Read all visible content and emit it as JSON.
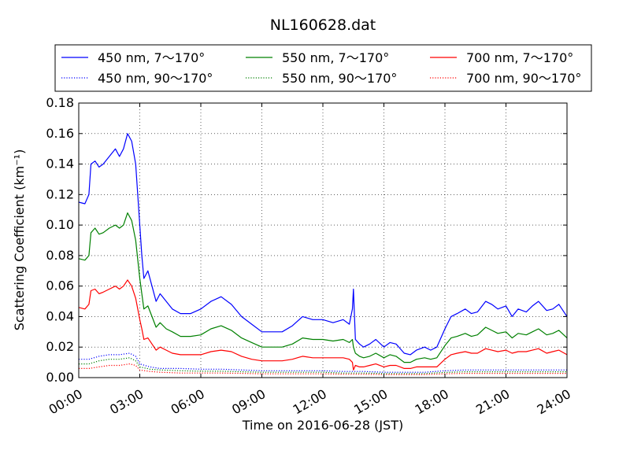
{
  "chart_data": {
    "type": "line",
    "title": "NL160628.dat",
    "xlabel": "Time on 2016-06-28 (JST)",
    "ylabel": "Scattering Coefficient (km⁻¹)",
    "x_unit": "hours",
    "xlim": [
      0,
      24
    ],
    "ylim": [
      0,
      0.18
    ],
    "x_ticks": [
      {
        "value": 0,
        "label": "00:00"
      },
      {
        "value": 3,
        "label": "03:00"
      },
      {
        "value": 6,
        "label": "06:00"
      },
      {
        "value": 9,
        "label": "09:00"
      },
      {
        "value": 12,
        "label": "12:00"
      },
      {
        "value": 15,
        "label": "15:00"
      },
      {
        "value": 18,
        "label": "18:00"
      },
      {
        "value": 21,
        "label": "21:00"
      },
      {
        "value": 24,
        "label": "24:00"
      }
    ],
    "y_ticks": [
      {
        "value": 0,
        "label": "0.00"
      },
      {
        "value": 0.02,
        "label": "0.02"
      },
      {
        "value": 0.04,
        "label": "0.04"
      },
      {
        "value": 0.06,
        "label": "0.06"
      },
      {
        "value": 0.08,
        "label": "0.08"
      },
      {
        "value": 0.1,
        "label": "0.10"
      },
      {
        "value": 0.12,
        "label": "0.12"
      },
      {
        "value": 0.14,
        "label": "0.14"
      },
      {
        "value": 0.16,
        "label": "0.16"
      },
      {
        "value": 0.18,
        "label": "0.18"
      }
    ],
    "grid": true,
    "legend_position": "top",
    "series": [
      {
        "name": "450 nm, 7～170°",
        "color": "#0000ff",
        "style": "solid",
        "x": [
          0,
          0.3,
          0.5,
          0.6,
          0.8,
          1.0,
          1.2,
          1.5,
          1.8,
          2.0,
          2.2,
          2.4,
          2.6,
          2.8,
          3.0,
          3.1,
          3.2,
          3.4,
          3.6,
          3.8,
          4.0,
          4.3,
          4.6,
          5.0,
          5.5,
          6.0,
          6.5,
          7.0,
          7.5,
          8.0,
          8.5,
          9.0,
          9.5,
          10.0,
          10.5,
          11.0,
          11.5,
          12.0,
          12.5,
          13.0,
          13.3,
          13.45,
          13.5,
          13.6,
          13.8,
          14.0,
          14.3,
          14.6,
          15.0,
          15.3,
          15.6,
          16.0,
          16.3,
          16.6,
          17.0,
          17.3,
          17.6,
          18.0,
          18.3,
          18.6,
          19.0,
          19.3,
          19.6,
          20.0,
          20.3,
          20.6,
          21.0,
          21.3,
          21.6,
          22.0,
          22.3,
          22.6,
          23.0,
          23.3,
          23.6,
          24.0
        ],
        "y": [
          0.115,
          0.114,
          0.12,
          0.14,
          0.142,
          0.138,
          0.14,
          0.145,
          0.15,
          0.145,
          0.15,
          0.16,
          0.155,
          0.14,
          0.1,
          0.08,
          0.065,
          0.07,
          0.06,
          0.05,
          0.055,
          0.05,
          0.045,
          0.042,
          0.042,
          0.045,
          0.05,
          0.053,
          0.048,
          0.04,
          0.035,
          0.03,
          0.03,
          0.03,
          0.034,
          0.04,
          0.038,
          0.038,
          0.036,
          0.038,
          0.035,
          0.045,
          0.058,
          0.025,
          0.022,
          0.02,
          0.022,
          0.025,
          0.02,
          0.023,
          0.022,
          0.016,
          0.015,
          0.018,
          0.02,
          0.018,
          0.02,
          0.032,
          0.04,
          0.042,
          0.045,
          0.042,
          0.043,
          0.05,
          0.048,
          0.045,
          0.047,
          0.04,
          0.045,
          0.043,
          0.047,
          0.05,
          0.044,
          0.045,
          0.048,
          0.04
        ]
      },
      {
        "name": "450 nm, 90～170°",
        "color": "#0000ff",
        "style": "dotted",
        "x": [
          0,
          0.5,
          1.0,
          1.5,
          2.0,
          2.5,
          2.8,
          3.0,
          3.5,
          4.0,
          5.0,
          6.0,
          7.0,
          8.0,
          9.0,
          10.0,
          11.0,
          12.0,
          13.0,
          13.5,
          14.0,
          15.0,
          16.0,
          17.0,
          18.0,
          19.0,
          20.0,
          21.0,
          22.0,
          23.0,
          24.0
        ],
        "y": [
          0.012,
          0.012,
          0.014,
          0.015,
          0.015,
          0.016,
          0.014,
          0.009,
          0.007,
          0.006,
          0.006,
          0.0055,
          0.0055,
          0.005,
          0.0045,
          0.0045,
          0.0045,
          0.0045,
          0.004,
          0.004,
          0.004,
          0.0035,
          0.0035,
          0.0035,
          0.0045,
          0.005,
          0.005,
          0.005,
          0.005,
          0.005,
          0.005
        ]
      },
      {
        "name": "550 nm, 7～170°",
        "color": "#008000",
        "style": "solid",
        "x": [
          0,
          0.3,
          0.5,
          0.6,
          0.8,
          1.0,
          1.2,
          1.5,
          1.8,
          2.0,
          2.2,
          2.4,
          2.6,
          2.8,
          3.0,
          3.1,
          3.2,
          3.4,
          3.6,
          3.8,
          4.0,
          4.3,
          4.6,
          5.0,
          5.5,
          6.0,
          6.5,
          7.0,
          7.5,
          8.0,
          8.5,
          9.0,
          9.5,
          10.0,
          10.5,
          11.0,
          11.5,
          12.0,
          12.5,
          13.0,
          13.3,
          13.45,
          13.5,
          13.6,
          13.8,
          14.0,
          14.3,
          14.6,
          15.0,
          15.3,
          15.6,
          16.0,
          16.3,
          16.6,
          17.0,
          17.3,
          17.6,
          18.0,
          18.3,
          18.6,
          19.0,
          19.3,
          19.6,
          20.0,
          20.3,
          20.6,
          21.0,
          21.3,
          21.6,
          22.0,
          22.3,
          22.6,
          23.0,
          23.3,
          23.6,
          24.0
        ],
        "y": [
          0.078,
          0.077,
          0.08,
          0.095,
          0.098,
          0.094,
          0.095,
          0.098,
          0.1,
          0.098,
          0.1,
          0.108,
          0.103,
          0.09,
          0.065,
          0.055,
          0.045,
          0.047,
          0.04,
          0.033,
          0.036,
          0.032,
          0.03,
          0.027,
          0.027,
          0.028,
          0.032,
          0.034,
          0.031,
          0.026,
          0.023,
          0.02,
          0.02,
          0.02,
          0.022,
          0.026,
          0.025,
          0.025,
          0.024,
          0.025,
          0.023,
          0.025,
          0.02,
          0.016,
          0.014,
          0.013,
          0.014,
          0.016,
          0.013,
          0.015,
          0.014,
          0.01,
          0.01,
          0.012,
          0.013,
          0.012,
          0.013,
          0.021,
          0.026,
          0.027,
          0.029,
          0.027,
          0.028,
          0.033,
          0.031,
          0.029,
          0.03,
          0.026,
          0.029,
          0.028,
          0.03,
          0.032,
          0.028,
          0.029,
          0.031,
          0.026
        ]
      },
      {
        "name": "550 nm, 90～170°",
        "color": "#008000",
        "style": "dotted",
        "x": [
          0,
          0.5,
          1.0,
          1.5,
          2.0,
          2.5,
          2.8,
          3.0,
          3.5,
          4.0,
          5.0,
          6.0,
          7.0,
          8.0,
          9.0,
          10.0,
          11.0,
          12.0,
          13.0,
          13.5,
          14.0,
          15.0,
          16.0,
          17.0,
          18.0,
          19.0,
          20.0,
          21.0,
          22.0,
          23.0,
          24.0
        ],
        "y": [
          0.009,
          0.009,
          0.011,
          0.012,
          0.012,
          0.013,
          0.011,
          0.007,
          0.0055,
          0.005,
          0.0045,
          0.0042,
          0.0042,
          0.0038,
          0.0035,
          0.0035,
          0.0035,
          0.0035,
          0.003,
          0.003,
          0.003,
          0.0027,
          0.0027,
          0.0027,
          0.0034,
          0.0038,
          0.0038,
          0.0038,
          0.0038,
          0.0038,
          0.0038
        ]
      },
      {
        "name": "700 nm, 7～170°",
        "color": "#ff0000",
        "style": "solid",
        "x": [
          0,
          0.3,
          0.5,
          0.6,
          0.8,
          1.0,
          1.2,
          1.5,
          1.8,
          2.0,
          2.2,
          2.4,
          2.6,
          2.8,
          3.0,
          3.1,
          3.2,
          3.4,
          3.6,
          3.8,
          4.0,
          4.3,
          4.6,
          5.0,
          5.5,
          6.0,
          6.5,
          7.0,
          7.5,
          8.0,
          8.5,
          9.0,
          9.5,
          10.0,
          10.5,
          11.0,
          11.5,
          12.0,
          12.5,
          13.0,
          13.3,
          13.45,
          13.5,
          13.6,
          13.8,
          14.0,
          14.3,
          14.6,
          15.0,
          15.3,
          15.6,
          16.0,
          16.3,
          16.6,
          17.0,
          17.3,
          17.6,
          18.0,
          18.3,
          18.6,
          19.0,
          19.3,
          19.6,
          20.0,
          20.3,
          20.6,
          21.0,
          21.3,
          21.6,
          22.0,
          22.3,
          22.6,
          23.0,
          23.3,
          23.6,
          24.0
        ],
        "y": [
          0.046,
          0.045,
          0.048,
          0.057,
          0.058,
          0.055,
          0.056,
          0.058,
          0.06,
          0.058,
          0.06,
          0.064,
          0.06,
          0.052,
          0.038,
          0.032,
          0.025,
          0.026,
          0.022,
          0.018,
          0.02,
          0.018,
          0.016,
          0.015,
          0.015,
          0.015,
          0.017,
          0.018,
          0.017,
          0.014,
          0.012,
          0.011,
          0.011,
          0.011,
          0.012,
          0.014,
          0.013,
          0.013,
          0.013,
          0.013,
          0.012,
          0.01,
          0.005,
          0.008,
          0.007,
          0.007,
          0.008,
          0.009,
          0.007,
          0.008,
          0.008,
          0.006,
          0.006,
          0.007,
          0.007,
          0.007,
          0.007,
          0.012,
          0.015,
          0.016,
          0.017,
          0.016,
          0.016,
          0.019,
          0.018,
          0.017,
          0.018,
          0.016,
          0.017,
          0.017,
          0.018,
          0.019,
          0.016,
          0.017,
          0.018,
          0.015
        ]
      },
      {
        "name": "700 nm, 90～170°",
        "color": "#ff0000",
        "style": "dotted",
        "x": [
          0,
          0.5,
          1.0,
          1.5,
          2.0,
          2.5,
          2.8,
          3.0,
          3.5,
          4.0,
          5.0,
          6.0,
          7.0,
          8.0,
          9.0,
          10.0,
          11.0,
          12.0,
          13.0,
          13.5,
          14.0,
          15.0,
          16.0,
          17.0,
          18.0,
          19.0,
          20.0,
          21.0,
          22.0,
          23.0,
          24.0
        ],
        "y": [
          0.006,
          0.006,
          0.007,
          0.008,
          0.008,
          0.009,
          0.008,
          0.005,
          0.004,
          0.0035,
          0.003,
          0.003,
          0.003,
          0.0028,
          0.0025,
          0.0025,
          0.0025,
          0.0025,
          0.0022,
          0.0022,
          0.0022,
          0.002,
          0.002,
          0.002,
          0.0025,
          0.0028,
          0.0028,
          0.0028,
          0.0028,
          0.0028,
          0.0028
        ]
      }
    ]
  }
}
